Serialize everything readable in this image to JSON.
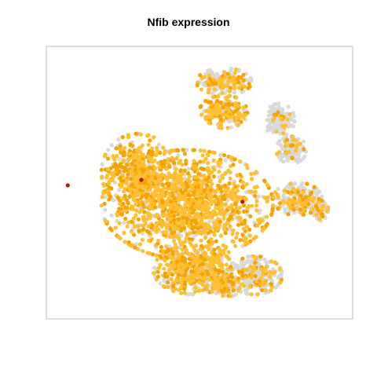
{
  "chart_data": {
    "type": "scatter",
    "title": "Nfib expression",
    "xlabel": "",
    "ylabel": "",
    "axes_visible": false,
    "grid": false,
    "legend": "none",
    "xlim": [
      0,
      100
    ],
    "ylim": [
      0,
      100
    ],
    "colors": {
      "low": "#d9d9d9",
      "mid": "#ffbf33",
      "high": "#f5a300",
      "max": "#b2180d",
      "frame": "#bdbdbd"
    },
    "clusters": [
      {
        "cx": 46,
        "cy": 58,
        "rx": 28,
        "ry": 20,
        "expr": 0.82,
        "n": 1400
      },
      {
        "cx": 30,
        "cy": 46,
        "rx": 12,
        "ry": 14,
        "expr": 0.8,
        "n": 450
      },
      {
        "cx": 48,
        "cy": 82,
        "rx": 13,
        "ry": 9,
        "expr": 0.65,
        "n": 500
      },
      {
        "cx": 68,
        "cy": 84,
        "rx": 9,
        "ry": 7,
        "expr": 0.3,
        "n": 300
      },
      {
        "cx": 58,
        "cy": 88,
        "rx": 6,
        "ry": 4,
        "expr": 0.55,
        "n": 120
      },
      {
        "cx": 58,
        "cy": 24,
        "rx": 8,
        "ry": 6,
        "expr": 0.6,
        "n": 220
      },
      {
        "cx": 58,
        "cy": 13,
        "rx": 9,
        "ry": 5,
        "expr": 0.28,
        "n": 200
      },
      {
        "cx": 82,
        "cy": 56,
        "rx": 8,
        "ry": 6,
        "expr": 0.35,
        "n": 220
      },
      {
        "cx": 80,
        "cy": 38,
        "rx": 5,
        "ry": 5,
        "expr": 0.15,
        "n": 150
      },
      {
        "cx": 76,
        "cy": 27,
        "rx": 5,
        "ry": 6,
        "expr": 0.12,
        "n": 150
      },
      {
        "cx": 89,
        "cy": 60,
        "rx": 3,
        "ry": 4,
        "expr": 0.3,
        "n": 60
      }
    ],
    "high_points": [
      {
        "x": 7,
        "y": 51
      },
      {
        "x": 31,
        "y": 49
      },
      {
        "x": 64,
        "y": 57
      }
    ]
  }
}
